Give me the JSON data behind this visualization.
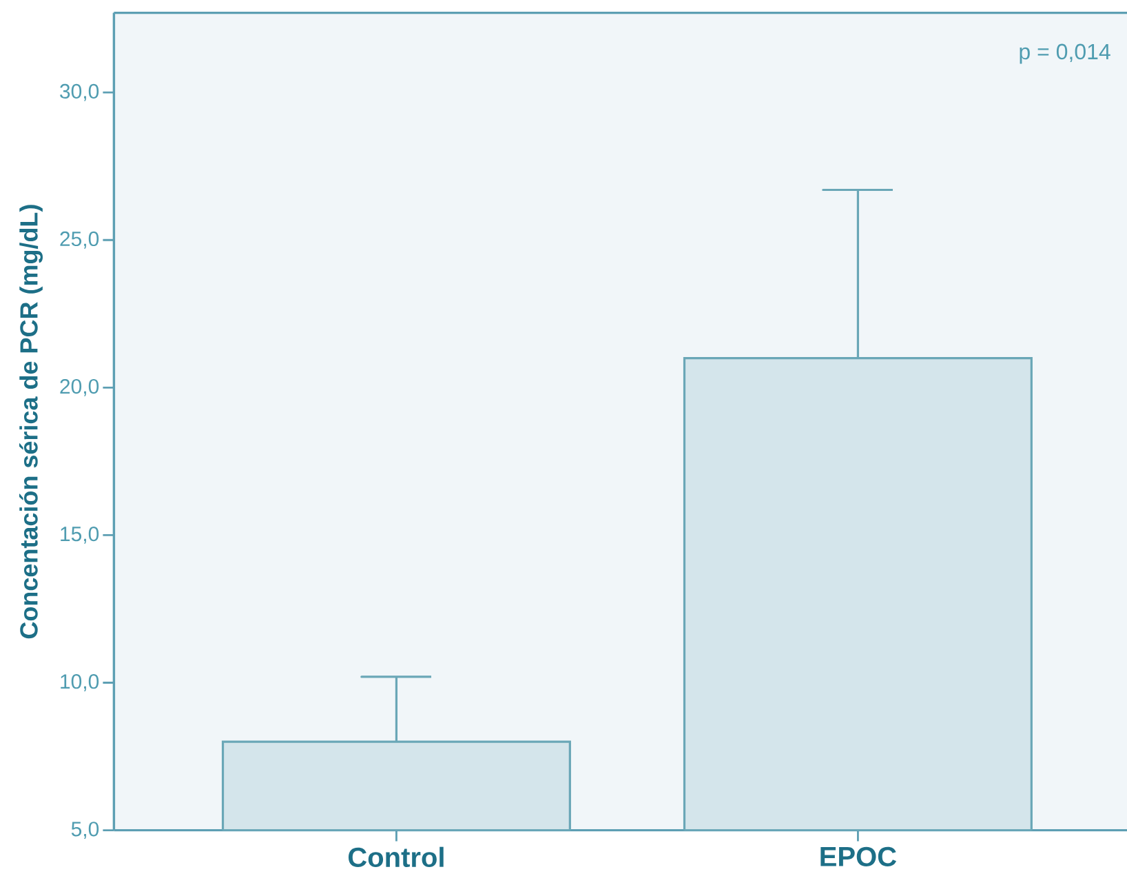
{
  "chart_data": {
    "type": "bar",
    "ylabel": "Concentación sérica de PCR (mg/dL)",
    "categories": [
      "Control",
      "EPOC"
    ],
    "values": [
      8.0,
      21.0
    ],
    "errors": [
      [
        8.0,
        10.2
      ],
      [
        21.0,
        26.7
      ]
    ],
    "color": "#d4e5eb",
    "ylim": [
      5,
      32.7
    ],
    "yticks": [
      {
        "value": 5,
        "label": "5,0"
      },
      {
        "value": 10,
        "label": "10,0"
      },
      {
        "value": 15,
        "label": "15,0"
      },
      {
        "value": 20,
        "label": "20,0"
      },
      {
        "value": 25,
        "label": "25,0"
      },
      {
        "value": 30,
        "label": "30,0"
      }
    ],
    "annotations": [
      "p = 0,014"
    ]
  }
}
